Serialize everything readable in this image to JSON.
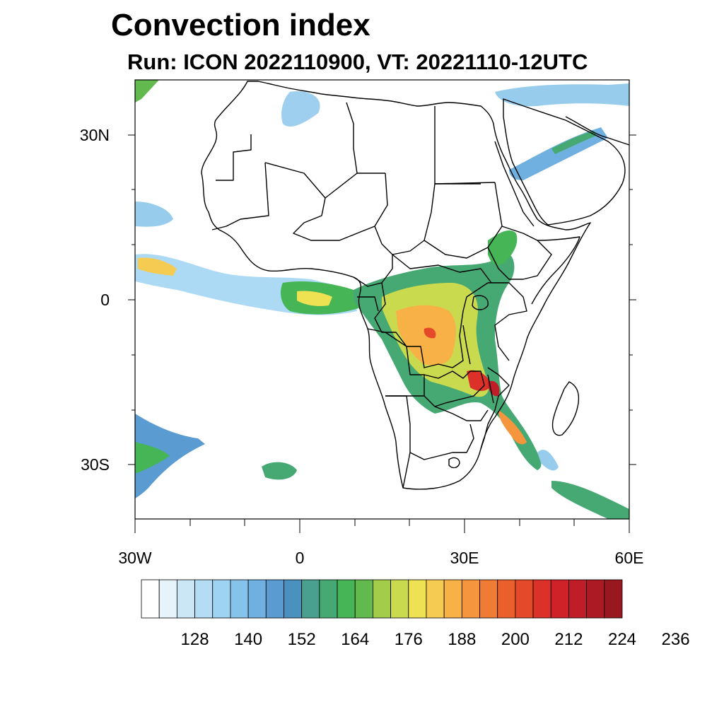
{
  "title": "Convection index",
  "subtitle": "Run: ICON 2022110900,  VT: 20221110-12UTC",
  "map": {
    "region": "Africa",
    "lat_labels": [
      "30N",
      "0",
      "30S"
    ],
    "lon_labels": [
      "30W",
      "0",
      "30E",
      "60E"
    ],
    "lon_range": [
      -30,
      60
    ],
    "lat_range": [
      -40,
      40
    ]
  },
  "colorbar": {
    "tick_labels": [
      "128",
      "140",
      "152",
      "164",
      "176",
      "188",
      "200",
      "212",
      "224",
      "236"
    ],
    "colors": [
      "#ffffff",
      "#e6f3fb",
      "#cbe6f5",
      "#b4dcf2",
      "#9ed3f3",
      "#86c3ea",
      "#6fb0e0",
      "#5a9bd2",
      "#4a91bf",
      "#4aa08e",
      "#46a872",
      "#45b556",
      "#62b94d",
      "#a3cc4a",
      "#c9da4e",
      "#eee253",
      "#f6cb52",
      "#f7b146",
      "#f5963e",
      "#f07b34",
      "#ea602c",
      "#e44a29",
      "#dc3128",
      "#cf2228",
      "#bf1d27",
      "#ac1a24",
      "#991820"
    ]
  }
}
